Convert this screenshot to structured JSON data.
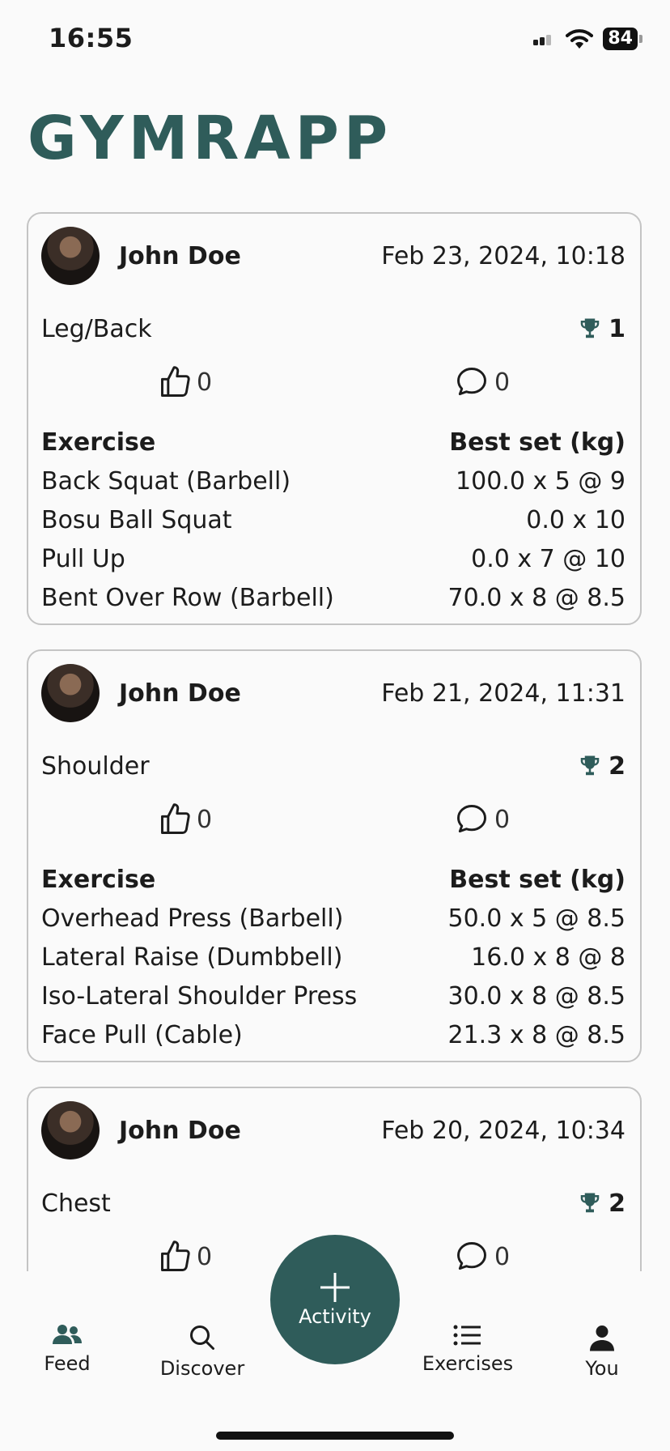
{
  "status_bar": {
    "time": "16:55",
    "battery": "84"
  },
  "app": {
    "title": "GYMRAPP"
  },
  "table_headers": {
    "exercise": "Exercise",
    "best_set": "Best set (kg)"
  },
  "workouts": [
    {
      "user": "John Doe",
      "date": "Feb 23, 2024, 10:18",
      "name": "Leg/Back",
      "prs": "1",
      "likes": "0",
      "comments": "0",
      "exercises": [
        {
          "name": "Back Squat (Barbell)",
          "best": "100.0 x 5 @ 9"
        },
        {
          "name": "Bosu Ball Squat",
          "best": "0.0 x 10"
        },
        {
          "name": "Pull Up",
          "best": "0.0 x 7 @ 10"
        },
        {
          "name": "Bent Over Row (Barbell)",
          "best": "70.0 x 8 @ 8.5"
        }
      ]
    },
    {
      "user": "John Doe",
      "date": "Feb 21, 2024, 11:31",
      "name": "Shoulder",
      "prs": "2",
      "likes": "0",
      "comments": "0",
      "exercises": [
        {
          "name": "Overhead Press (Barbell)",
          "best": "50.0 x 5 @ 8.5"
        },
        {
          "name": "Lateral Raise (Dumbbell)",
          "best": "16.0 x 8 @ 8"
        },
        {
          "name": "Iso-Lateral Shoulder Press",
          "best": "30.0 x 8 @ 8.5"
        },
        {
          "name": "Face Pull (Cable)",
          "best": "21.3 x 8 @ 8.5"
        }
      ]
    },
    {
      "user": "John Doe",
      "date": "Feb 20, 2024, 10:34",
      "name": "Chest",
      "prs": "2",
      "likes": "0",
      "comments": "0",
      "exercises": []
    }
  ],
  "tabbar": {
    "feed": "Feed",
    "discover": "Discover",
    "activity": "Activity",
    "exercises": "Exercises",
    "you": "You"
  },
  "colors": {
    "brand": "#2f5c5a",
    "border": "#c4c4c4",
    "background": "#fafafa"
  },
  "icons": [
    "trophy-icon",
    "thumbs-up-icon",
    "comment-icon",
    "people-icon",
    "search-icon",
    "plus-icon",
    "list-icon",
    "person-icon"
  ]
}
